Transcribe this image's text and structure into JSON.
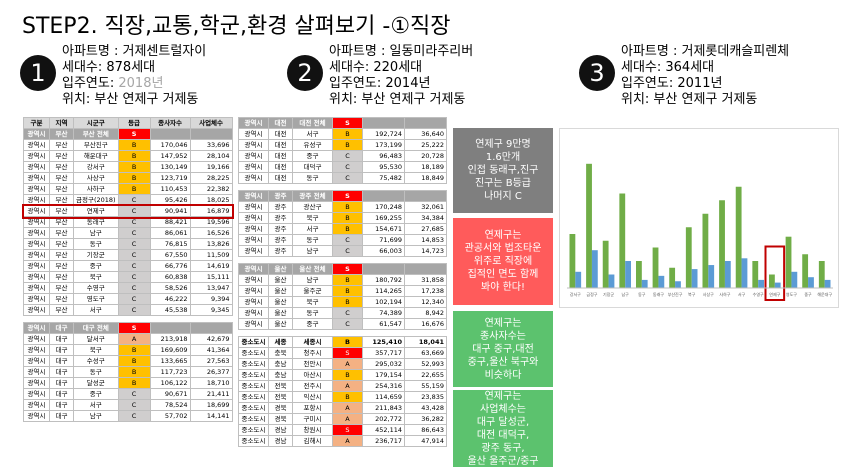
{
  "title": "STEP2. 직장,교통,학군,환경 살펴보기 -①직장",
  "apartments": [
    {
      "number": "1",
      "name": "아파트명 : 거제센트럴자이",
      "households": "세대수: 878세대",
      "year_label": "입주연도:",
      "year": "2018년",
      "year_color": "#a6a6a6",
      "location": "위치: 부산 연제구 거제동"
    },
    {
      "number": "2",
      "name": "아파트명 : 일동미라주리버",
      "households": "세대수: 220세대",
      "year_label": "입주연도:",
      "year": "2014년",
      "year_color": "#000000",
      "location": "위치: 부산 연제구 거제동"
    },
    {
      "number": "3",
      "name": "아파트명 : 거제롯데캐슬피렌체",
      "households": "세대수: 364세대",
      "year_label": "입주연도:",
      "year": "2011년",
      "year_color": "#000000",
      "location": "위치: 부산 연제구 거제동"
    }
  ],
  "table1": {
    "columns": [
      "구분",
      "지역",
      "시군구",
      "등급",
      "종사자수",
      "사업체수"
    ],
    "sections": [
      {
        "rows": [
          [
            "광역시",
            "부산",
            "부산 전체",
            "S"
          ],
          [
            "광역시",
            "부산",
            "부산진구",
            "B",
            "170,046",
            "33,696"
          ],
          [
            "광역시",
            "부산",
            "해운대구",
            "B",
            "147,952",
            "28,104"
          ],
          [
            "광역시",
            "부산",
            "강서구",
            "B",
            "130,149",
            "19,166"
          ],
          [
            "광역시",
            "부산",
            "사상구",
            "B",
            "123,719",
            "28,225"
          ],
          [
            "광역시",
            "부산",
            "사하구",
            "B",
            "110,453",
            "22,382"
          ],
          [
            "광역시",
            "부산",
            "금정구(2018)",
            "C",
            "95,426",
            "18,025"
          ],
          [
            "광역시",
            "부산",
            "연제구",
            "C",
            "90,941",
            "16,879"
          ],
          [
            "광역시",
            "부산",
            "동래구",
            "C",
            "88,421",
            "19,596"
          ],
          [
            "광역시",
            "부산",
            "남구",
            "C",
            "86,061",
            "16,526"
          ],
          [
            "광역시",
            "부산",
            "동구",
            "C",
            "76,815",
            "13,826"
          ],
          [
            "광역시",
            "부산",
            "기장군",
            "C",
            "67,550",
            "11,509"
          ],
          [
            "광역시",
            "부산",
            "중구",
            "C",
            "66,776",
            "14,619"
          ],
          [
            "광역시",
            "부산",
            "북구",
            "C",
            "60,838",
            "15,111"
          ],
          [
            "광역시",
            "부산",
            "수영구",
            "C",
            "58,526",
            "13,947"
          ],
          [
            "광역시",
            "부산",
            "영도구",
            "C",
            "46,222",
            "9,394"
          ],
          [
            "광역시",
            "부산",
            "서구",
            "C",
            "45,538",
            "9,345"
          ]
        ]
      },
      {
        "rows": [
          [
            "광역시",
            "대구",
            "대구 전체",
            "S"
          ],
          [
            "광역시",
            "대구",
            "달서구",
            "A",
            "213,918",
            "42,679"
          ],
          [
            "광역시",
            "대구",
            "북구",
            "B",
            "169,609",
            "41,364"
          ],
          [
            "광역시",
            "대구",
            "수성구",
            "B",
            "133,665",
            "27,563"
          ],
          [
            "광역시",
            "대구",
            "동구",
            "B",
            "117,723",
            "26,377"
          ],
          [
            "광역시",
            "대구",
            "달성군",
            "B",
            "106,122",
            "18,710"
          ],
          [
            "광역시",
            "대구",
            "중구",
            "C",
            "90,671",
            "21,411"
          ],
          [
            "광역시",
            "대구",
            "서구",
            "C",
            "78,524",
            "18,699"
          ],
          [
            "광역시",
            "대구",
            "남구",
            "C",
            "57,702",
            "14,141"
          ]
        ]
      }
    ]
  },
  "table2": {
    "sections": [
      {
        "rows": [
          [
            "광역시",
            "대전",
            "대전 전체",
            "S"
          ],
          [
            "광역시",
            "대전",
            "서구",
            "B",
            "192,724",
            "36,640"
          ],
          [
            "광역시",
            "대전",
            "유성구",
            "B",
            "173,199",
            "25,222"
          ],
          [
            "광역시",
            "대전",
            "중구",
            "C",
            "96,483",
            "20,728"
          ],
          [
            "광역시",
            "대전",
            "대덕구",
            "C",
            "95,530",
            "18,189"
          ],
          [
            "광역시",
            "대전",
            "동구",
            "C",
            "75,482",
            "18,849"
          ]
        ]
      },
      {
        "rows": [
          [
            "광역시",
            "광주",
            "광주 전체",
            "S"
          ],
          [
            "광역시",
            "광주",
            "광산구",
            "B",
            "170,248",
            "32,061"
          ],
          [
            "광역시",
            "광주",
            "북구",
            "B",
            "169,255",
            "34,384"
          ],
          [
            "광역시",
            "광주",
            "서구",
            "B",
            "154,671",
            "27,685"
          ],
          [
            "광역시",
            "광주",
            "동구",
            "C",
            "71,699",
            "14,853"
          ],
          [
            "광역시",
            "광주",
            "남구",
            "C",
            "66,003",
            "14,723"
          ]
        ]
      },
      {
        "rows": [
          [
            "광역시",
            "울산",
            "울산 전체",
            "S"
          ],
          [
            "광역시",
            "울산",
            "남구",
            "B",
            "180,792",
            "31,858"
          ],
          [
            "광역시",
            "울산",
            "울주군",
            "B",
            "114,265",
            "17,238"
          ],
          [
            "광역시",
            "울산",
            "북구",
            "B",
            "102,194",
            "12,340"
          ],
          [
            "광역시",
            "울산",
            "동구",
            "C",
            "74,389",
            "8,942"
          ],
          [
            "광역시",
            "울산",
            "중구",
            "C",
            "61,547",
            "16,676"
          ]
        ]
      },
      {
        "rows": [
          [
            "중소도시",
            "세종",
            "세종시",
            "B",
            "125,410",
            "18,041"
          ],
          [
            "중소도시",
            "충북",
            "청주시",
            "S",
            "357,717",
            "63,669"
          ],
          [
            "중소도시",
            "충남",
            "천안시",
            "A",
            "295,032",
            "52,993"
          ],
          [
            "중소도시",
            "충남",
            "아산시",
            "B",
            "179,154",
            "22,655"
          ],
          [
            "중소도시",
            "전북",
            "전주시",
            "A",
            "254,316",
            "55,159"
          ],
          [
            "중소도시",
            "전북",
            "익산시",
            "B",
            "114,659",
            "23,835"
          ],
          [
            "중소도시",
            "경북",
            "포항시",
            "A",
            "211,843",
            "43,428"
          ],
          [
            "중소도시",
            "경북",
            "구미시",
            "A",
            "202,772",
            "36,282"
          ],
          [
            "중소도시",
            "경남",
            "창원시",
            "S",
            "452,114",
            "86,643"
          ],
          [
            "중소도시",
            "경남",
            "김해시",
            "A",
            "236,717",
            "47,914"
          ]
        ]
      }
    ]
  },
  "notes": [
    {
      "color": "#7f7f7f",
      "lines": [
        "연제구 9만명",
        "1.6만개",
        "인접 동래구,진구",
        "진구는 B등급",
        "나머지 C"
      ]
    },
    {
      "color": "#ff5b5b",
      "lines": [
        "연제구는",
        "관공서와 법조타운",
        "위주로 직장에",
        "집적인 면도 함께",
        "봐야 한다!"
      ]
    },
    {
      "color": "#5cc26e",
      "lines": [
        "연제구는",
        "종사자수는",
        "대구 중구,대전",
        "중구,울산 북구와",
        "비슷하다"
      ]
    },
    {
      "color": "#5cc26e",
      "lines": [
        "연제구는",
        "사업체수는",
        "대구 달성군,",
        "대전 대덕구,",
        "광주 동구,",
        "울산 울주군/중구"
      ]
    }
  ],
  "chart_data": {
    "type": "bar",
    "categories": [
      "강서구",
      "금정구",
      "기장군",
      "남구",
      "동구",
      "동래구",
      "부산진구",
      "북구",
      "사상구",
      "사하구",
      "서구",
      "수영구",
      "연제구",
      "영도구",
      "중구",
      "해운대구"
    ],
    "series": [
      {
        "color": "#70ad47",
        "values": [
          40,
          92,
          35,
          70,
          20,
          30,
          15,
          45,
          55,
          65,
          75,
          20,
          10,
          38,
          25,
          20
        ]
      },
      {
        "color": "#5b9bd5",
        "values": [
          12,
          28,
          10,
          20,
          6,
          9,
          5,
          14,
          17,
          20,
          22,
          6,
          4,
          12,
          8,
          6
        ]
      }
    ],
    "ylim": [
      0,
      100
    ]
  }
}
